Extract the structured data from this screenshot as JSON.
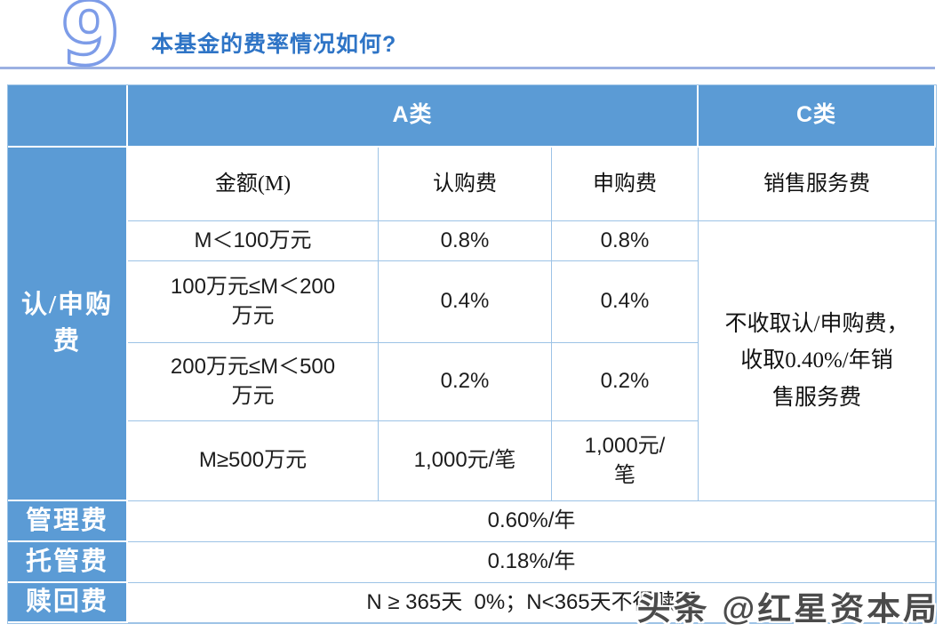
{
  "page": {
    "number_badge": "9",
    "title": "本基金的费率情况如何?"
  },
  "colors": {
    "table_blue": "#5B9BD5",
    "title_blue": "#2E74C6",
    "header_rule_blue": "#9BB0E2",
    "grid_line_blue": "#9DC3E6"
  },
  "table": {
    "class_a": "A类",
    "class_c": "C类",
    "columns": {
      "amount": "金额(M)",
      "subscription_fee": "认购费",
      "purchase_fee": "申购费",
      "sales_service_fee": "销售服务费"
    },
    "group_label": "认/申购\n费",
    "tiers": [
      {
        "amount": "M＜100万元",
        "subscription": "0.8%",
        "purchase": "0.8%"
      },
      {
        "amount": "100万元≤M＜200\n万元",
        "subscription": "0.4%",
        "purchase": "0.4%"
      },
      {
        "amount": "200万元≤M＜500\n万元",
        "subscription": "0.2%",
        "purchase": "0.2%"
      },
      {
        "amount": "M≥500万元",
        "subscription": "1,000元/笔",
        "purchase": "1,000元/\n笔"
      }
    ],
    "class_c_note": "不收取认/申购费，\n收取0.40%/年销\n售服务费",
    "management_fee": {
      "label": "管理费",
      "value": "0.60%/年"
    },
    "custody_fee": {
      "label": "托管费",
      "value": "0.18%/年"
    },
    "redemption_fee": {
      "label": "赎回费",
      "value": "N ≥ 365天  0%；N<365天不得赎回"
    }
  },
  "watermark": "头条 @红星资本局"
}
